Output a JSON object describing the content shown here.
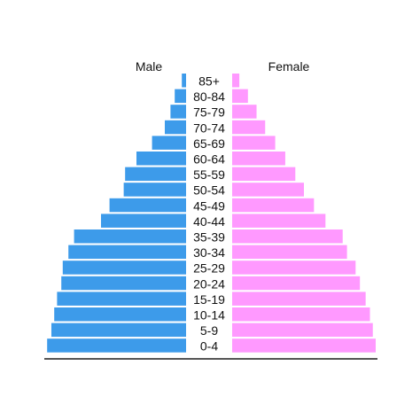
{
  "chart_data": {
    "type": "bar",
    "orientation": "horizontal-population-pyramid",
    "categories": [
      "85+",
      "80-84",
      "75-79",
      "70-74",
      "65-69",
      "60-64",
      "55-59",
      "50-54",
      "45-49",
      "40-44",
      "35-39",
      "30-34",
      "25-29",
      "20-24",
      "15-19",
      "10-14",
      "5-9",
      "0-4"
    ],
    "series": [
      {
        "name": "Male",
        "color": "#3d9bea",
        "values": [
          3,
          8,
          11,
          15,
          24,
          35,
          43,
          44,
          54,
          60,
          79,
          83,
          87,
          88,
          91,
          93,
          95,
          98
        ]
      },
      {
        "name": "Female",
        "color": "#ff99ff",
        "values": [
          5,
          11,
          17,
          23,
          30,
          37,
          44,
          50,
          57,
          65,
          77,
          80,
          86,
          89,
          93,
          96,
          98,
          100
        ]
      }
    ],
    "xlim": [
      0,
      100
    ],
    "grid": false,
    "legend": "top"
  }
}
